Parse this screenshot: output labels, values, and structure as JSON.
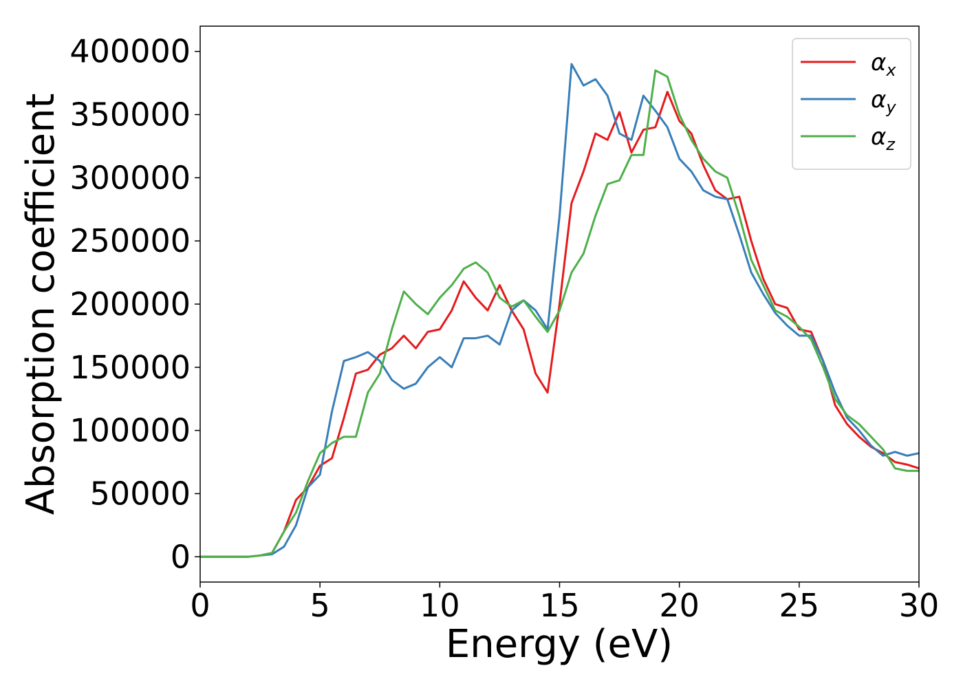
{
  "chart_data": {
    "type": "line",
    "x_label": "Energy (eV)",
    "y_label": "Absorption coefficient",
    "x": [
      0,
      0.5,
      1,
      1.5,
      2,
      2.5,
      3,
      3.5,
      4,
      4.5,
      5,
      5.5,
      6,
      6.5,
      7,
      7.5,
      8,
      8.5,
      9,
      9.5,
      10,
      10.5,
      11,
      11.5,
      12,
      12.5,
      13,
      13.5,
      14,
      14.5,
      15,
      15.5,
      16,
      16.5,
      17,
      17.5,
      18,
      18.5,
      19,
      19.5,
      20,
      20.5,
      21,
      21.5,
      22,
      22.5,
      23,
      23.5,
      24,
      24.5,
      25,
      25.5,
      26,
      26.5,
      27,
      27.5,
      28,
      28.5,
      29,
      29.5,
      30
    ],
    "series": [
      {
        "name": "αx",
        "color": "#e41a1c",
        "values": [
          0,
          0,
          0,
          0,
          0,
          1000,
          3000,
          20000,
          45000,
          55000,
          72000,
          78000,
          110000,
          145000,
          148000,
          160000,
          165000,
          175000,
          165000,
          178000,
          180000,
          195000,
          218000,
          205000,
          195000,
          215000,
          195000,
          180000,
          145000,
          130000,
          200000,
          280000,
          305000,
          335000,
          330000,
          352000,
          320000,
          338000,
          340000,
          368000,
          345000,
          335000,
          310000,
          290000,
          283000,
          285000,
          250000,
          220000,
          200000,
          197000,
          180000,
          178000,
          155000,
          120000,
          105000,
          95000,
          87000,
          82000,
          75000,
          73000,
          70000
        ]
      },
      {
        "name": "αy",
        "color": "#377eb8",
        "values": [
          0,
          0,
          0,
          0,
          0,
          1000,
          2000,
          8000,
          25000,
          55000,
          65000,
          115000,
          155000,
          158000,
          162000,
          155000,
          140000,
          133000,
          137000,
          150000,
          158000,
          150000,
          173000,
          173000,
          175000,
          168000,
          195000,
          203000,
          195000,
          180000,
          270000,
          390000,
          373000,
          378000,
          365000,
          335000,
          330000,
          365000,
          353000,
          340000,
          315000,
          305000,
          290000,
          285000,
          283000,
          255000,
          225000,
          208000,
          193000,
          183000,
          175000,
          175000,
          155000,
          130000,
          110000,
          100000,
          88000,
          80000,
          83000,
          80000,
          82000
        ]
      },
      {
        "name": "αz",
        "color": "#4daf4a",
        "values": [
          0,
          0,
          0,
          0,
          0,
          1000,
          3000,
          20000,
          35000,
          60000,
          82000,
          90000,
          95000,
          95000,
          130000,
          145000,
          180000,
          210000,
          200000,
          192000,
          205000,
          215000,
          228000,
          233000,
          225000,
          205000,
          198000,
          203000,
          190000,
          178000,
          195000,
          225000,
          240000,
          270000,
          295000,
          298000,
          318000,
          318000,
          385000,
          380000,
          350000,
          330000,
          315000,
          305000,
          300000,
          270000,
          235000,
          215000,
          195000,
          190000,
          182000,
          172000,
          150000,
          125000,
          112000,
          105000,
          95000,
          85000,
          70000,
          68000,
          68000
        ]
      }
    ],
    "xlim": [
      0,
      30
    ],
    "ylim": [
      -20000,
      420000
    ],
    "xticks": [
      0,
      5,
      10,
      15,
      20,
      25,
      30
    ],
    "yticks": [
      0,
      50000,
      100000,
      150000,
      200000,
      250000,
      300000,
      350000,
      400000
    ],
    "legend": "upper right",
    "grid": false
  }
}
